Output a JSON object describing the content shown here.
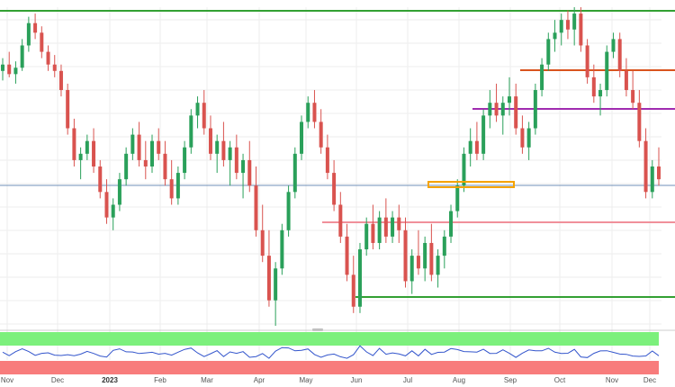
{
  "chart_data": {
    "type": "candlestick",
    "title": "",
    "xlabel": "",
    "ylabel": "",
    "grid": true,
    "x_ticks": [
      "Nov",
      "Dec",
      "2023",
      "Feb",
      "Mar",
      "Apr",
      "May",
      "Jun",
      "Jul",
      "Aug",
      "Sep",
      "Oct",
      "Nov",
      "Dec"
    ],
    "bold_ticks": [
      "2023"
    ],
    "ylim": [
      0,
      100
    ],
    "series": [
      {
        "kind": "ohlc",
        "values": [
          [
            0,
            80,
            84,
            77,
            82
          ],
          [
            1,
            82,
            86,
            78,
            79
          ],
          [
            2,
            79,
            83,
            76,
            81
          ],
          [
            3,
            81,
            90,
            80,
            88
          ],
          [
            4,
            88,
            97,
            86,
            95
          ],
          [
            5,
            95,
            98,
            90,
            92
          ],
          [
            6,
            92,
            94,
            84,
            86
          ],
          [
            7,
            86,
            88,
            80,
            82
          ],
          [
            8,
            82,
            85,
            78,
            80
          ],
          [
            9,
            80,
            82,
            72,
            74
          ],
          [
            10,
            74,
            76,
            60,
            62
          ],
          [
            11,
            62,
            65,
            50,
            52
          ],
          [
            12,
            52,
            56,
            46,
            54
          ],
          [
            13,
            54,
            60,
            52,
            58
          ],
          [
            14,
            58,
            62,
            48,
            50
          ],
          [
            15,
            50,
            52,
            40,
            42
          ],
          [
            16,
            42,
            46,
            32,
            34
          ],
          [
            17,
            34,
            40,
            30,
            38
          ],
          [
            18,
            38,
            48,
            36,
            46
          ],
          [
            19,
            46,
            56,
            44,
            54
          ],
          [
            20,
            54,
            62,
            52,
            60
          ],
          [
            21,
            60,
            64,
            50,
            52
          ],
          [
            22,
            52,
            58,
            46,
            50
          ],
          [
            23,
            50,
            60,
            48,
            58
          ],
          [
            24,
            58,
            62,
            52,
            54
          ],
          [
            25,
            54,
            58,
            44,
            46
          ],
          [
            26,
            46,
            52,
            38,
            40
          ],
          [
            27,
            40,
            50,
            38,
            48
          ],
          [
            28,
            48,
            58,
            46,
            56
          ],
          [
            29,
            56,
            68,
            54,
            66
          ],
          [
            30,
            66,
            72,
            62,
            70
          ],
          [
            31,
            70,
            74,
            60,
            62
          ],
          [
            32,
            62,
            66,
            52,
            54
          ],
          [
            33,
            54,
            60,
            48,
            58
          ],
          [
            34,
            58,
            64,
            50,
            52
          ],
          [
            35,
            52,
            58,
            44,
            56
          ],
          [
            36,
            56,
            60,
            46,
            48
          ],
          [
            37,
            48,
            54,
            40,
            52
          ],
          [
            38,
            52,
            58,
            42,
            44
          ],
          [
            39,
            44,
            50,
            28,
            30
          ],
          [
            40,
            30,
            38,
            20,
            22
          ],
          [
            41,
            22,
            30,
            6,
            8
          ],
          [
            42,
            8,
            20,
            0,
            18
          ],
          [
            43,
            18,
            32,
            16,
            30
          ],
          [
            44,
            30,
            44,
            28,
            42
          ],
          [
            45,
            42,
            56,
            40,
            54
          ],
          [
            46,
            54,
            66,
            52,
            64
          ],
          [
            47,
            64,
            72,
            62,
            70
          ],
          [
            48,
            70,
            74,
            62,
            64
          ],
          [
            49,
            64,
            68,
            54,
            56
          ],
          [
            50,
            56,
            60,
            46,
            48
          ],
          [
            51,
            48,
            52,
            36,
            38
          ],
          [
            52,
            38,
            42,
            26,
            28
          ],
          [
            53,
            28,
            32,
            14,
            16
          ],
          [
            54,
            16,
            22,
            4,
            6
          ],
          [
            55,
            6,
            26,
            4,
            24
          ],
          [
            56,
            24,
            34,
            22,
            32
          ],
          [
            57,
            32,
            38,
            24,
            26
          ],
          [
            58,
            26,
            36,
            24,
            34
          ],
          [
            59,
            34,
            40,
            26,
            28
          ],
          [
            60,
            28,
            36,
            26,
            34
          ],
          [
            61,
            34,
            38,
            26,
            30
          ],
          [
            62,
            30,
            34,
            12,
            14
          ],
          [
            63,
            14,
            24,
            10,
            22
          ],
          [
            64,
            22,
            30,
            16,
            18
          ],
          [
            65,
            18,
            28,
            14,
            26
          ],
          [
            66,
            26,
            32,
            14,
            16
          ],
          [
            67,
            16,
            24,
            12,
            22
          ],
          [
            68,
            22,
            30,
            18,
            28
          ],
          [
            69,
            28,
            38,
            26,
            36
          ],
          [
            70,
            36,
            46,
            34,
            44
          ],
          [
            71,
            44,
            56,
            42,
            54
          ],
          [
            72,
            54,
            62,
            50,
            58
          ],
          [
            73,
            58,
            64,
            52,
            54
          ],
          [
            74,
            54,
            68,
            52,
            66
          ],
          [
            75,
            66,
            74,
            62,
            70
          ],
          [
            76,
            70,
            76,
            64,
            66
          ],
          [
            77,
            66,
            72,
            60,
            70
          ],
          [
            78,
            70,
            78,
            66,
            72
          ],
          [
            79,
            72,
            76,
            60,
            62
          ],
          [
            80,
            62,
            66,
            54,
            56
          ],
          [
            81,
            56,
            64,
            52,
            62
          ],
          [
            82,
            62,
            76,
            60,
            74
          ],
          [
            83,
            74,
            84,
            72,
            82
          ],
          [
            84,
            82,
            92,
            80,
            90
          ],
          [
            85,
            90,
            96,
            86,
            92
          ],
          [
            86,
            92,
            98,
            88,
            96
          ],
          [
            87,
            96,
            99,
            90,
            93
          ],
          [
            88,
            93,
            100,
            88,
            98
          ],
          [
            89,
            98,
            100,
            86,
            88
          ],
          [
            90,
            88,
            90,
            76,
            78
          ],
          [
            91,
            78,
            82,
            70,
            72
          ],
          [
            92,
            72,
            76,
            66,
            74
          ],
          [
            93,
            74,
            88,
            72,
            86
          ],
          [
            94,
            86,
            92,
            84,
            90
          ],
          [
            95,
            90,
            92,
            78,
            80
          ],
          [
            96,
            80,
            84,
            72,
            74
          ],
          [
            97,
            74,
            80,
            68,
            70
          ],
          [
            98,
            70,
            74,
            56,
            58
          ],
          [
            99,
            58,
            62,
            40,
            42
          ],
          [
            100,
            42,
            52,
            40,
            50
          ],
          [
            101,
            50,
            56,
            44,
            46
          ]
        ]
      }
    ],
    "horizontal_levels": [
      {
        "color": "#33a033"
      },
      {
        "color": "#d9541e"
      },
      {
        "color": "#a02cb0"
      },
      {
        "color": "#6f8fb8"
      },
      {
        "color": "#f0909a"
      },
      {
        "color": "#33a033"
      }
    ],
    "highlight_box": {
      "color": "#f5a300"
    },
    "indicator": {
      "upper_band_color": "#7cf07c",
      "lower_band_color": "#f87c7c",
      "line_color": "#3355cc"
    },
    "colors": {
      "bull": "#2aa05a",
      "bear": "#d9534f"
    }
  }
}
